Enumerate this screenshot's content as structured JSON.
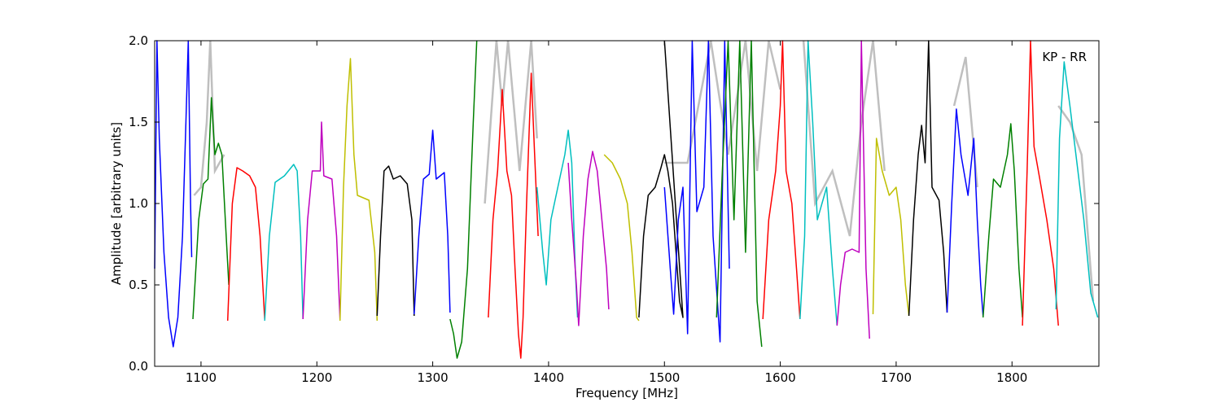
{
  "chart_data": {
    "type": "line",
    "title": "",
    "annotation": "KP - RR",
    "xlabel": "Frequency [MHz]",
    "ylabel": "Amplitude [arbitrary units]",
    "xlim": [
      1060,
      1875
    ],
    "ylim": [
      0.0,
      2.0
    ],
    "x_ticks": [
      1100,
      1200,
      1300,
      1400,
      1500,
      1600,
      1700,
      1800
    ],
    "x_tick_labels": [
      "1100",
      "1200",
      "1300",
      "1400",
      "1500",
      "1600",
      "1700",
      "1800"
    ],
    "y_ticks": [
      0.0,
      0.5,
      1.0,
      1.5,
      2.0
    ],
    "y_tick_labels": [
      "0.0",
      "0.5",
      "1.0",
      "1.5",
      "2.0"
    ],
    "grid": false,
    "background_series_color": "#bfbfbf",
    "background_series": [
      [
        [
          1094,
          1.05
        ],
        [
          1100,
          1.1
        ],
        [
          1105,
          1.5
        ],
        [
          1108,
          2.0
        ],
        [
          1112,
          1.2
        ],
        [
          1120,
          1.3
        ]
      ],
      [
        [
          1345,
          1.0
        ],
        [
          1355,
          2.0
        ],
        [
          1360,
          1.6
        ],
        [
          1365,
          2.0
        ],
        [
          1375,
          1.2
        ],
        [
          1385,
          2.0
        ],
        [
          1390,
          1.4
        ]
      ],
      [
        [
          1500,
          1.25
        ],
        [
          1520,
          1.25
        ],
        [
          1540,
          2.0
        ],
        [
          1555,
          1.3
        ],
        [
          1570,
          2.0
        ],
        [
          1580,
          1.2
        ],
        [
          1590,
          2.0
        ],
        [
          1600,
          1.7
        ]
      ],
      [
        [
          1620,
          2.0
        ],
        [
          1630,
          1.0
        ],
        [
          1645,
          1.2
        ],
        [
          1660,
          0.8
        ],
        [
          1670,
          1.5
        ],
        [
          1680,
          2.0
        ],
        [
          1690,
          1.2
        ]
      ],
      [
        [
          1750,
          1.6
        ],
        [
          1760,
          1.9
        ],
        [
          1770,
          1.1
        ]
      ],
      [
        [
          1840,
          1.6
        ],
        [
          1850,
          1.5
        ],
        [
          1860,
          1.3
        ],
        [
          1870,
          0.4
        ]
      ]
    ],
    "series": [
      {
        "color": "#0000ff",
        "points": [
          [
            1060,
            0.6
          ],
          [
            1062,
            2.0
          ],
          [
            1064,
            1.4
          ],
          [
            1068,
            0.7
          ],
          [
            1072,
            0.3
          ],
          [
            1076,
            0.12
          ],
          [
            1080,
            0.3
          ],
          [
            1084,
            0.8
          ],
          [
            1087,
            1.5
          ],
          [
            1089,
            2.0
          ],
          [
            1091,
            1.0
          ],
          [
            1092,
            0.67
          ]
        ]
      },
      {
        "color": "#008000",
        "points": [
          [
            1093,
            0.29
          ],
          [
            1098,
            0.9
          ],
          [
            1102,
            1.12
          ],
          [
            1106,
            1.15
          ],
          [
            1109,
            1.65
          ],
          [
            1112,
            1.3
          ],
          [
            1115,
            1.37
          ],
          [
            1118,
            1.3
          ],
          [
            1121,
            0.9
          ],
          [
            1124,
            0.5
          ]
        ]
      },
      {
        "color": "#ff0000",
        "points": [
          [
            1123,
            0.28
          ],
          [
            1127,
            1.0
          ],
          [
            1131,
            1.22
          ],
          [
            1136,
            1.2
          ],
          [
            1142,
            1.17
          ],
          [
            1147,
            1.1
          ],
          [
            1151,
            0.8
          ],
          [
            1155,
            0.29
          ]
        ]
      },
      {
        "color": "#00bfbf",
        "points": [
          [
            1155,
            0.28
          ],
          [
            1159,
            0.8
          ],
          [
            1164,
            1.13
          ],
          [
            1172,
            1.17
          ],
          [
            1180,
            1.24
          ],
          [
            1183,
            1.2
          ],
          [
            1186,
            0.8
          ],
          [
            1188,
            0.29
          ]
        ]
      },
      {
        "color": "#bf00bf",
        "points": [
          [
            1188,
            0.29
          ],
          [
            1192,
            0.9
          ],
          [
            1196,
            1.2
          ],
          [
            1203,
            1.2
          ],
          [
            1204,
            1.5
          ],
          [
            1206,
            1.17
          ],
          [
            1213,
            1.15
          ],
          [
            1217,
            0.8
          ],
          [
            1220,
            0.29
          ]
        ]
      },
      {
        "color": "#bfbf00",
        "points": [
          [
            1220,
            0.28
          ],
          [
            1223,
            1.1
          ],
          [
            1226,
            1.6
          ],
          [
            1229,
            1.89
          ],
          [
            1232,
            1.3
          ],
          [
            1235,
            1.05
          ],
          [
            1245,
            1.02
          ],
          [
            1250,
            0.7
          ],
          [
            1252,
            0.28
          ]
        ]
      },
      {
        "color": "#000000",
        "points": [
          [
            1252,
            0.31
          ],
          [
            1255,
            0.8
          ],
          [
            1258,
            1.2
          ],
          [
            1262,
            1.23
          ],
          [
            1266,
            1.15
          ],
          [
            1272,
            1.17
          ],
          [
            1278,
            1.12
          ],
          [
            1282,
            0.9
          ],
          [
            1284,
            0.31
          ]
        ]
      },
      {
        "color": "#0000ff",
        "points": [
          [
            1284,
            0.32
          ],
          [
            1288,
            0.8
          ],
          [
            1292,
            1.15
          ],
          [
            1297,
            1.18
          ],
          [
            1300,
            1.45
          ],
          [
            1303,
            1.15
          ],
          [
            1310,
            1.19
          ],
          [
            1313,
            0.8
          ],
          [
            1315,
            0.33
          ]
        ]
      },
      {
        "color": "#008000",
        "points": [
          [
            1315,
            0.29
          ],
          [
            1318,
            0.2
          ],
          [
            1321,
            0.05
          ],
          [
            1325,
            0.15
          ],
          [
            1330,
            0.6
          ],
          [
            1335,
            1.5
          ],
          [
            1338,
            2.0
          ]
        ]
      },
      {
        "color": "#ff0000",
        "points": [
          [
            1348,
            0.3
          ],
          [
            1352,
            0.9
          ],
          [
            1356,
            1.2
          ],
          [
            1360,
            1.7
          ],
          [
            1364,
            1.2
          ],
          [
            1368,
            1.05
          ],
          [
            1371,
            0.6
          ],
          [
            1374,
            0.2
          ],
          [
            1376,
            0.05
          ],
          [
            1378,
            0.3
          ],
          [
            1381,
            1.0
          ],
          [
            1385,
            1.8
          ],
          [
            1388,
            1.3
          ],
          [
            1391,
            0.8
          ]
        ]
      },
      {
        "color": "#00bfbf",
        "points": [
          [
            1390,
            1.1
          ],
          [
            1395,
            0.7
          ],
          [
            1398,
            0.5
          ],
          [
            1402,
            0.9
          ],
          [
            1408,
            1.1
          ],
          [
            1414,
            1.3
          ],
          [
            1417,
            1.45
          ],
          [
            1420,
            1.25
          ],
          [
            1423,
            0.6
          ],
          [
            1425,
            0.3
          ]
        ]
      },
      {
        "color": "#bf00bf",
        "points": [
          [
            1417,
            1.25
          ],
          [
            1420,
            0.9
          ],
          [
            1424,
            0.5
          ],
          [
            1426,
            0.25
          ],
          [
            1430,
            0.8
          ],
          [
            1434,
            1.15
          ],
          [
            1438,
            1.32
          ],
          [
            1442,
            1.2
          ],
          [
            1446,
            0.9
          ],
          [
            1450,
            0.6
          ],
          [
            1452,
            0.35
          ]
        ]
      },
      {
        "color": "#bfbf00",
        "points": [
          [
            1448,
            1.3
          ],
          [
            1455,
            1.25
          ],
          [
            1462,
            1.15
          ],
          [
            1468,
            1.0
          ],
          [
            1472,
            0.7
          ],
          [
            1476,
            0.3
          ],
          [
            1478,
            0.28
          ]
        ]
      },
      {
        "color": "#000000",
        "points": [
          [
            1478,
            0.3
          ],
          [
            1482,
            0.8
          ],
          [
            1486,
            1.05
          ],
          [
            1492,
            1.1
          ],
          [
            1497,
            1.22
          ],
          [
            1500,
            1.3
          ],
          [
            1503,
            1.2
          ],
          [
            1507,
            1.0
          ],
          [
            1510,
            0.7
          ],
          [
            1513,
            0.4
          ],
          [
            1516,
            0.3
          ],
          [
            1500,
            2.0
          ]
        ]
      },
      {
        "color": "#0000ff",
        "points": [
          [
            1500,
            1.1
          ],
          [
            1505,
            0.6
          ],
          [
            1508,
            0.32
          ],
          [
            1512,
            0.9
          ],
          [
            1516,
            1.1
          ],
          [
            1520,
            0.2
          ],
          [
            1524,
            2.0
          ],
          [
            1528,
            0.95
          ],
          [
            1534,
            1.1
          ],
          [
            1538,
            2.0
          ],
          [
            1542,
            0.8
          ],
          [
            1548,
            0.15
          ],
          [
            1552,
            2.0
          ],
          [
            1556,
            0.6
          ]
        ]
      },
      {
        "color": "#008000",
        "points": [
          [
            1545,
            0.3
          ],
          [
            1550,
            1.2
          ],
          [
            1555,
            2.0
          ],
          [
            1560,
            0.9
          ],
          [
            1565,
            2.0
          ],
          [
            1570,
            0.7
          ],
          [
            1575,
            2.0
          ],
          [
            1580,
            0.4
          ],
          [
            1584,
            0.12
          ]
        ]
      },
      {
        "color": "#ff0000",
        "points": [
          [
            1585,
            0.29
          ],
          [
            1590,
            0.9
          ],
          [
            1596,
            1.2
          ],
          [
            1600,
            1.6
          ],
          [
            1602,
            2.0
          ],
          [
            1605,
            1.2
          ],
          [
            1610,
            1.0
          ],
          [
            1614,
            0.6
          ],
          [
            1617,
            0.29
          ]
        ]
      },
      {
        "color": "#00bfbf",
        "points": [
          [
            1617,
            0.29
          ],
          [
            1621,
            0.8
          ],
          [
            1624,
            2.0
          ],
          [
            1628,
            1.5
          ],
          [
            1632,
            0.9
          ],
          [
            1636,
            1.0
          ],
          [
            1640,
            1.1
          ],
          [
            1645,
            0.6
          ],
          [
            1649,
            0.25
          ]
        ]
      },
      {
        "color": "#bf00bf",
        "points": [
          [
            1649,
            0.25
          ],
          [
            1652,
            0.5
          ],
          [
            1656,
            0.7
          ],
          [
            1662,
            0.72
          ],
          [
            1668,
            0.7
          ],
          [
            1670,
            2.0
          ],
          [
            1674,
            0.6
          ],
          [
            1677,
            0.17
          ]
        ]
      },
      {
        "color": "#bfbf00",
        "points": [
          [
            1680,
            0.32
          ],
          [
            1683,
            1.4
          ],
          [
            1688,
            1.2
          ],
          [
            1694,
            1.05
          ],
          [
            1700,
            1.1
          ],
          [
            1704,
            0.9
          ],
          [
            1708,
            0.5
          ],
          [
            1711,
            0.31
          ]
        ]
      },
      {
        "color": "#000000",
        "points": [
          [
            1711,
            0.31
          ],
          [
            1715,
            0.9
          ],
          [
            1719,
            1.3
          ],
          [
            1722,
            1.48
          ],
          [
            1725,
            1.25
          ],
          [
            1728,
            2.0
          ],
          [
            1731,
            1.1
          ],
          [
            1737,
            1.02
          ],
          [
            1741,
            0.7
          ],
          [
            1744,
            0.33
          ]
        ]
      },
      {
        "color": "#0000ff",
        "points": [
          [
            1744,
            0.33
          ],
          [
            1748,
            1.0
          ],
          [
            1752,
            1.58
          ],
          [
            1756,
            1.3
          ],
          [
            1762,
            1.05
          ],
          [
            1767,
            1.4
          ],
          [
            1770,
            0.9
          ],
          [
            1773,
            0.5
          ],
          [
            1775,
            0.31
          ]
        ]
      },
      {
        "color": "#008000",
        "points": [
          [
            1775,
            0.3
          ],
          [
            1780,
            0.8
          ],
          [
            1784,
            1.15
          ],
          [
            1790,
            1.1
          ],
          [
            1796,
            1.3
          ],
          [
            1799,
            1.49
          ],
          [
            1802,
            1.2
          ],
          [
            1806,
            0.6
          ],
          [
            1809,
            0.3
          ]
        ]
      },
      {
        "color": "#ff0000",
        "points": [
          [
            1809,
            0.25
          ],
          [
            1813,
            1.2
          ],
          [
            1816,
            2.0
          ],
          [
            1819,
            1.35
          ],
          [
            1824,
            1.15
          ],
          [
            1830,
            0.9
          ],
          [
            1836,
            0.6
          ],
          [
            1840,
            0.25
          ]
        ]
      },
      {
        "color": "#00bfbf",
        "points": [
          [
            1838,
            0.35
          ],
          [
            1841,
            1.4
          ],
          [
            1845,
            1.87
          ],
          [
            1850,
            1.6
          ],
          [
            1856,
            1.25
          ],
          [
            1862,
            0.9
          ],
          [
            1868,
            0.45
          ],
          [
            1874,
            0.3
          ]
        ]
      }
    ]
  }
}
